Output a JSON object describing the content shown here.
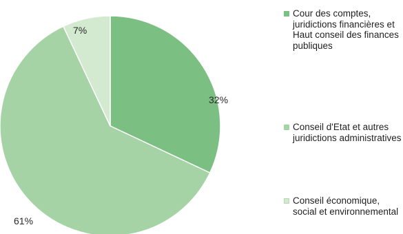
{
  "chart_data": {
    "type": "pie",
    "slices": [
      {
        "label": "Cour des comptes, juridictions financières et Haut conseil des finances publiques",
        "value": 32,
        "display": "32%",
        "color": "#7cbf83"
      },
      {
        "label": "Conseil d'Etat et autres juridictions administratives",
        "value": 61,
        "display": "61%",
        "color": "#a6d3a5"
      },
      {
        "label": "Conseil économique, social et environnemental",
        "value": 7,
        "display": "7%",
        "color": "#d3e9d0"
      }
    ],
    "start_angle": "12 o'clock",
    "direction": "clockwise",
    "legend_position": "right"
  }
}
